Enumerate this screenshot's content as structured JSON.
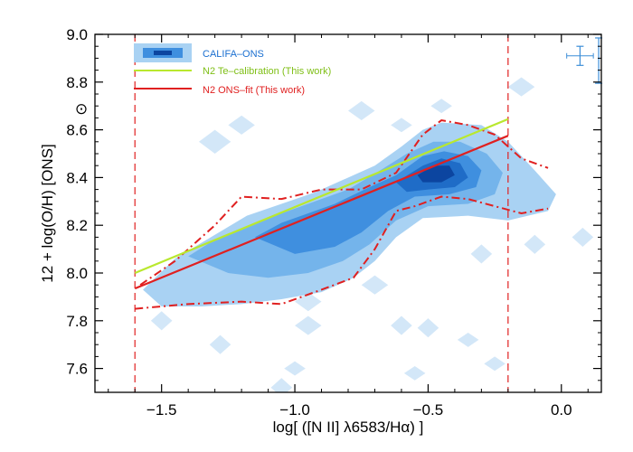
{
  "chart_data": {
    "type": "scatter",
    "xlabel": "log[ ([N II] λ6583/Hα) ]",
    "ylabel": "12 + log(O/H) [ONS]",
    "xlim": [
      -1.75,
      0.15
    ],
    "ylim": [
      7.5,
      9.0
    ],
    "x_ticks": [
      -1.5,
      -1.0,
      -0.5,
      0.0
    ],
    "x_tick_labels": [
      "−1.5",
      "−1.0",
      "−0.5",
      "0.0"
    ],
    "y_ticks": [
      7.6,
      7.8,
      8.0,
      8.2,
      8.4,
      8.6,
      8.8,
      9.0
    ],
    "y_tick_labels": [
      "7.6",
      "7.8",
      "8.0",
      "8.2",
      "8.4",
      "8.6",
      "8.8",
      "9.0"
    ],
    "solar_symbol": "⊙",
    "solar_value": 8.69,
    "legend_position": "top-left",
    "legend": [
      {
        "label": "CALIFA–ONS",
        "color": "#1a6fd0",
        "kind": "density"
      },
      {
        "label": "N2 Te–calibration (This work)",
        "color": "#8ccc1a",
        "kind": "line"
      },
      {
        "label": "N2 ONS–fit (This work)",
        "color": "#e02020",
        "kind": "line"
      }
    ],
    "colors": {
      "density_levels": [
        "#d3e7f8",
        "#a9d2f3",
        "#74b4eb",
        "#3f8fdf",
        "#1f6cc7",
        "#0c45a0"
      ],
      "te_line": "#b9e82e",
      "ons_line": "#e02020",
      "bounds": "#e02020"
    },
    "density_contours": [
      {
        "level": 1,
        "points": [
          [
            -1.57,
            7.93
          ],
          [
            -1.45,
            8.06
          ],
          [
            -1.3,
            8.16
          ],
          [
            -1.18,
            8.24
          ],
          [
            -1.05,
            8.29
          ],
          [
            -0.92,
            8.34
          ],
          [
            -0.82,
            8.39
          ],
          [
            -0.7,
            8.45
          ],
          [
            -0.6,
            8.53
          ],
          [
            -0.52,
            8.6
          ],
          [
            -0.45,
            8.63
          ],
          [
            -0.3,
            8.62
          ],
          [
            -0.2,
            8.55
          ],
          [
            -0.1,
            8.43
          ],
          [
            -0.02,
            8.33
          ],
          [
            -0.05,
            8.26
          ],
          [
            -0.2,
            8.22
          ],
          [
            -0.35,
            8.24
          ],
          [
            -0.52,
            8.23
          ],
          [
            -0.62,
            8.15
          ],
          [
            -0.7,
            8.05
          ],
          [
            -0.78,
            7.98
          ],
          [
            -0.9,
            7.92
          ],
          [
            -1.05,
            7.89
          ],
          [
            -1.2,
            7.87
          ],
          [
            -1.35,
            7.86
          ],
          [
            -1.5,
            7.86
          ]
        ]
      },
      {
        "level": 2,
        "points": [
          [
            -1.4,
            8.07
          ],
          [
            -1.3,
            8.14
          ],
          [
            -1.15,
            8.21
          ],
          [
            -1.0,
            8.27
          ],
          [
            -0.9,
            8.31
          ],
          [
            -0.8,
            8.35
          ],
          [
            -0.68,
            8.43
          ],
          [
            -0.58,
            8.5
          ],
          [
            -0.48,
            8.55
          ],
          [
            -0.38,
            8.55
          ],
          [
            -0.28,
            8.5
          ],
          [
            -0.22,
            8.42
          ],
          [
            -0.25,
            8.33
          ],
          [
            -0.35,
            8.29
          ],
          [
            -0.5,
            8.28
          ],
          [
            -0.62,
            8.22
          ],
          [
            -0.72,
            8.12
          ],
          [
            -0.82,
            8.05
          ],
          [
            -0.95,
            8.0
          ],
          [
            -1.1,
            7.98
          ],
          [
            -1.25,
            8.0
          ]
        ]
      },
      {
        "level": 3,
        "points": [
          [
            -1.15,
            8.15
          ],
          [
            -1.05,
            8.21
          ],
          [
            -0.95,
            8.25
          ],
          [
            -0.85,
            8.29
          ],
          [
            -0.72,
            8.36
          ],
          [
            -0.62,
            8.41
          ],
          [
            -0.52,
            8.49
          ],
          [
            -0.44,
            8.51
          ],
          [
            -0.35,
            8.49
          ],
          [
            -0.3,
            8.43
          ],
          [
            -0.32,
            8.36
          ],
          [
            -0.42,
            8.33
          ],
          [
            -0.55,
            8.32
          ],
          [
            -0.65,
            8.26
          ],
          [
            -0.75,
            8.17
          ],
          [
            -0.85,
            8.11
          ],
          [
            -1.0,
            8.08
          ]
        ]
      },
      {
        "level": 4,
        "points": [
          [
            -0.62,
            8.38
          ],
          [
            -0.52,
            8.45
          ],
          [
            -0.45,
            8.48
          ],
          [
            -0.38,
            8.46
          ],
          [
            -0.35,
            8.4
          ],
          [
            -0.4,
            8.36
          ],
          [
            -0.5,
            8.35
          ],
          [
            -0.58,
            8.34
          ]
        ]
      },
      {
        "level": 5,
        "points": [
          [
            -0.54,
            8.41
          ],
          [
            -0.48,
            8.45
          ],
          [
            -0.42,
            8.45
          ],
          [
            -0.4,
            8.41
          ],
          [
            -0.45,
            8.38
          ],
          [
            -0.52,
            8.38
          ]
        ]
      }
    ],
    "density_blobs": [
      [
        -0.97,
        8.22,
        0.07,
        0.05
      ],
      [
        -1.15,
        7.97,
        0.06,
        0.05
      ],
      [
        -1.25,
        8.1,
        0.06,
        0.05
      ],
      [
        -1.3,
        8.55,
        0.06,
        0.05
      ],
      [
        -1.2,
        8.62,
        0.05,
        0.04
      ],
      [
        -0.15,
        8.78,
        0.05,
        0.04
      ],
      [
        -0.45,
        8.7,
        0.04,
        0.03
      ],
      [
        -0.6,
        8.62,
        0.04,
        0.03
      ],
      [
        -0.75,
        8.68,
        0.05,
        0.04
      ],
      [
        -0.95,
        7.78,
        0.05,
        0.04
      ],
      [
        -0.6,
        7.78,
        0.04,
        0.04
      ],
      [
        -0.5,
        7.77,
        0.04,
        0.04
      ],
      [
        -0.35,
        7.72,
        0.04,
        0.03
      ],
      [
        -0.25,
        7.62,
        0.04,
        0.03
      ],
      [
        -1.28,
        7.7,
        0.04,
        0.04
      ],
      [
        -1.05,
        7.52,
        0.04,
        0.04
      ],
      [
        -1.0,
        7.6,
        0.04,
        0.03
      ],
      [
        -0.7,
        7.95,
        0.05,
        0.04
      ],
      [
        -0.1,
        8.12,
        0.04,
        0.04
      ],
      [
        0.08,
        8.15,
        0.04,
        0.04
      ],
      [
        -0.3,
        8.08,
        0.04,
        0.04
      ],
      [
        -0.95,
        7.88,
        0.05,
        0.04
      ],
      [
        -1.4,
        7.9,
        0.05,
        0.04
      ],
      [
        -0.55,
        7.58,
        0.04,
        0.03
      ],
      [
        -1.5,
        7.8,
        0.04,
        0.04
      ]
    ],
    "te_calibration": {
      "x": [
        -1.6,
        -0.2
      ],
      "y": [
        8.0,
        8.645
      ]
    },
    "ons_fit": {
      "x": [
        -1.6,
        -0.2
      ],
      "y": [
        7.935,
        8.575
      ]
    },
    "upper_bound": {
      "x": [
        -1.58,
        -1.45,
        -1.3,
        -1.2,
        -1.05,
        -0.9,
        -0.75,
        -0.62,
        -0.52,
        -0.45,
        -0.35,
        -0.25,
        -0.15,
        -0.05
      ],
      "y": [
        7.95,
        8.05,
        8.2,
        8.32,
        8.31,
        8.35,
        8.35,
        8.42,
        8.58,
        8.64,
        8.62,
        8.58,
        8.48,
        8.44
      ]
    },
    "lower_bound": {
      "x": [
        -1.6,
        -1.4,
        -1.2,
        -1.05,
        -0.9,
        -0.78,
        -0.7,
        -0.62,
        -0.55,
        -0.45,
        -0.35,
        -0.25,
        -0.15,
        -0.05
      ],
      "y": [
        7.85,
        7.87,
        7.88,
        7.87,
        7.93,
        7.98,
        8.1,
        8.26,
        8.28,
        8.32,
        8.31,
        8.28,
        8.25,
        8.27
      ]
    },
    "vertical_lines": [
      -1.6,
      -0.2
    ],
    "error_bars": [
      {
        "x": 0.07,
        "y": 8.91,
        "xerr": 0.05,
        "yerr": 0.04,
        "cap": true
      },
      {
        "x": 0.14,
        "y": 8.89,
        "xerr": 0.0,
        "yerr": 0.095,
        "cap": true
      }
    ]
  }
}
